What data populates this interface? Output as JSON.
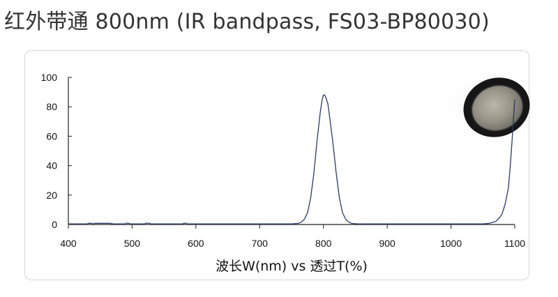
{
  "title": "红外带通 800nm (IR bandpass, FS03-BP80030)",
  "chart_data": {
    "type": "line",
    "title": "",
    "xlabel": "波长W(nm) vs 透过T(%)",
    "ylabel": "",
    "xlim": [
      400,
      1100
    ],
    "ylim": [
      0,
      100
    ],
    "xticks": [
      400,
      500,
      600,
      700,
      800,
      900,
      1000,
      1100
    ],
    "yticks": [
      0,
      20,
      40,
      60,
      80,
      100
    ],
    "grid": false,
    "legend": "none",
    "series": [
      {
        "color": "#2b3a67",
        "x": [
          400,
          430,
          431,
          436,
          440,
          441,
          445,
          450,
          455,
          460,
          465,
          470,
          490,
          491,
          494,
          497,
          520,
          521,
          526,
          530,
          580,
          581,
          584,
          587,
          700,
          750,
          760,
          765,
          770,
          775,
          780,
          785,
          790,
          795,
          798,
          800,
          802,
          804,
          807,
          810,
          815,
          820,
          825,
          830,
          835,
          840,
          845,
          850,
          855,
          860,
          900,
          1000,
          1050,
          1060,
          1070,
          1075,
          1080,
          1085,
          1090,
          1093,
          1096,
          1098,
          1100
        ],
        "y": [
          0.4,
          0.4,
          0.8,
          0.8,
          0.4,
          0.8,
          0.8,
          0.8,
          0.8,
          0.8,
          0.8,
          0.4,
          0.4,
          0.9,
          0.9,
          0.4,
          0.4,
          0.9,
          0.9,
          0.4,
          0.4,
          0.9,
          0.9,
          0.4,
          0.4,
          0.4,
          0.7,
          1.5,
          3.5,
          8,
          18,
          35,
          57,
          76,
          85,
          88,
          88,
          86,
          82,
          72,
          55,
          35,
          18,
          8,
          3.5,
          1.5,
          0.7,
          0.5,
          0.4,
          0.4,
          0.4,
          0.4,
          0.4,
          0.8,
          2,
          4,
          7,
          14,
          25,
          40,
          58,
          72,
          85
        ]
      }
    ],
    "annotation_image": "gray IR filter disc in black mount"
  }
}
